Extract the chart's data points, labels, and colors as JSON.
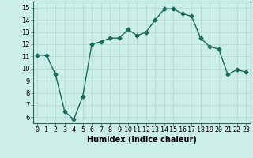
{
  "x": [
    0,
    1,
    2,
    3,
    4,
    5,
    6,
    7,
    8,
    9,
    10,
    11,
    12,
    13,
    14,
    15,
    16,
    17,
    18,
    19,
    20,
    21,
    22,
    23
  ],
  "y": [
    11.1,
    11.1,
    9.5,
    6.5,
    5.8,
    7.7,
    12.0,
    12.2,
    12.5,
    12.5,
    13.2,
    12.7,
    13.0,
    14.0,
    14.9,
    14.9,
    14.5,
    14.3,
    12.5,
    11.8,
    11.6,
    9.5,
    9.9,
    9.7
  ],
  "color": "#1a6b5a",
  "bg_color": "#cceee8",
  "grid_color": "#b0d8d0",
  "xlabel": "Humidex (Indice chaleur)",
  "ylim": [
    5.5,
    15.5
  ],
  "xlim": [
    -0.5,
    23.5
  ],
  "yticks": [
    6,
    7,
    8,
    9,
    10,
    11,
    12,
    13,
    14,
    15
  ],
  "xticks": [
    0,
    1,
    2,
    3,
    4,
    5,
    6,
    7,
    8,
    9,
    10,
    11,
    12,
    13,
    14,
    15,
    16,
    17,
    18,
    19,
    20,
    21,
    22,
    23
  ],
  "marker_size": 2.5,
  "line_width": 1.0,
  "xlabel_fontsize": 7,
  "tick_fontsize": 6
}
